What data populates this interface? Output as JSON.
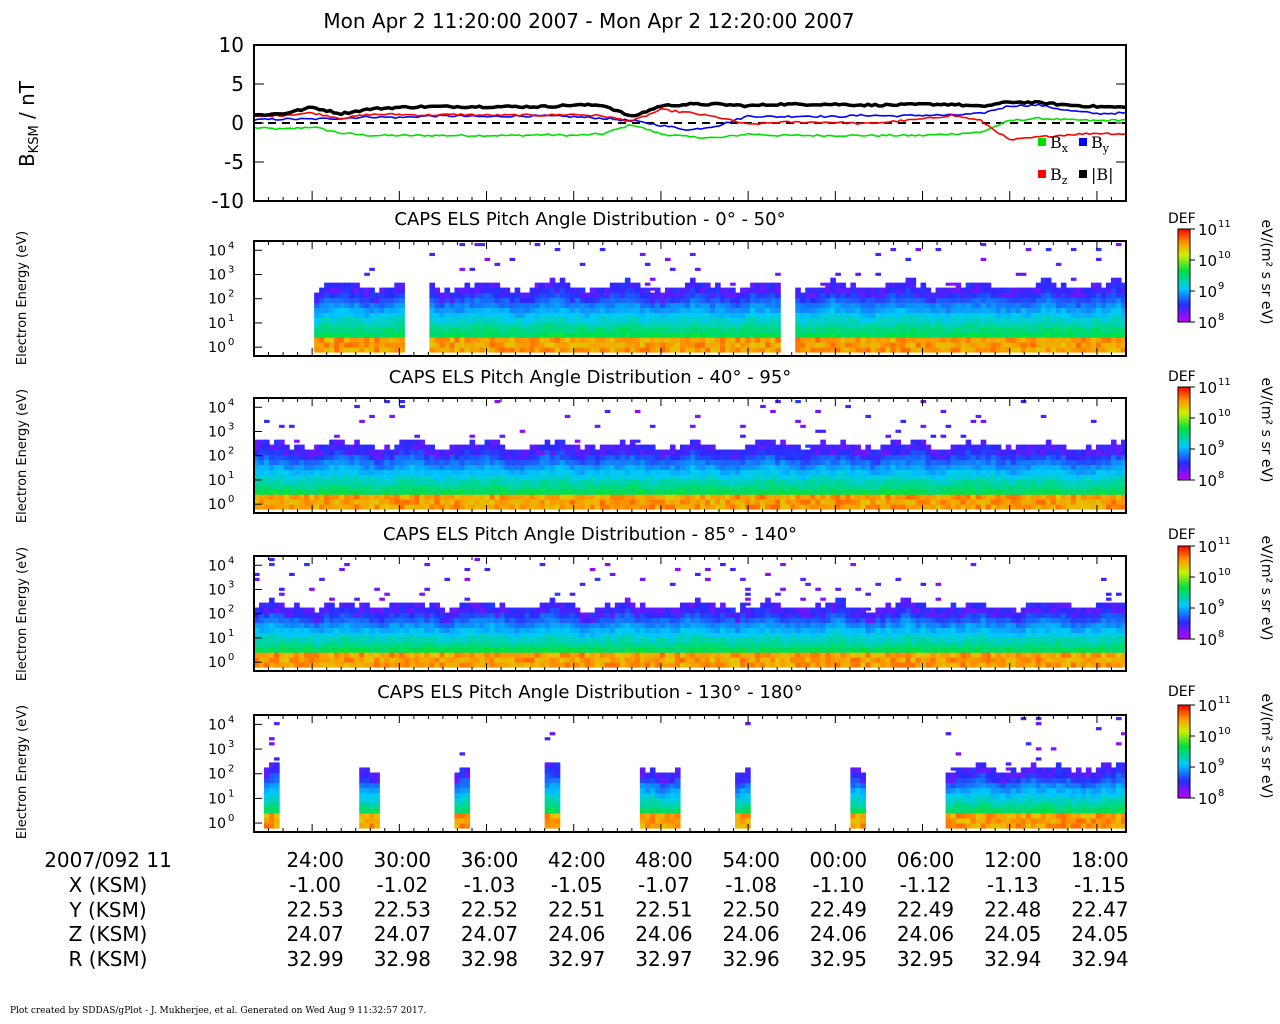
{
  "title": "Mon Apr 2 11:20:00 2007 - Mon Apr 2 12:20:00 2007",
  "footer": "Plot created by SDDAS/gPlot - J. Mukherjee, et al.  Generated on Wed Aug 9 11:32:57 2017.",
  "colors": {
    "bx": "#00e000",
    "by": "#0000ff",
    "bz": "#ff0000",
    "bmag": "#000000"
  },
  "chart_data": [
    {
      "type": "line",
      "ylabel": "B_KSM / nT",
      "ylabel_main": "B",
      "ylabel_sub": "KSM",
      "ylabel_unit": " / nT",
      "ylim": [
        -10,
        10
      ],
      "yticks": [
        "10",
        "5",
        "0",
        "-5",
        "-10"
      ],
      "ytick_values": [
        10,
        5,
        0,
        -5,
        -10
      ],
      "zero_line": "dashed",
      "legend_position": "bottom-right",
      "x_minutes": [
        0,
        2,
        4,
        6,
        8,
        10,
        12,
        14,
        16,
        18,
        20,
        22,
        24,
        26,
        28,
        30,
        32,
        34,
        36,
        38,
        40,
        42,
        44,
        46,
        48,
        50,
        52,
        54,
        56,
        58,
        60
      ],
      "series": [
        {
          "name": "Bx",
          "label_main": "B",
          "label_sub": "x",
          "color_key": "bx",
          "values": [
            -0.6,
            -0.8,
            -0.5,
            -1.3,
            -1.6,
            -1.6,
            -1.6,
            -1.6,
            -1.6,
            -1.6,
            -1.5,
            -1.6,
            -1.4,
            -0.2,
            -1.4,
            -1.8,
            -1.9,
            -1.4,
            -1.6,
            -1.6,
            -1.6,
            -1.6,
            -1.6,
            -1.6,
            -1.4,
            -1.2,
            0.3,
            0.6,
            0.4,
            0.3,
            0.4
          ]
        },
        {
          "name": "By",
          "label_main": "B",
          "label_sub": "y",
          "color_key": "by",
          "values": [
            0.4,
            0.5,
            0.5,
            0.6,
            0.8,
            0.7,
            0.9,
            0.9,
            0.8,
            0.9,
            0.9,
            0.8,
            0.6,
            0.3,
            -0.3,
            -0.9,
            -0.3,
            0.9,
            0.8,
            0.9,
            0.8,
            1.0,
            0.9,
            1.0,
            1.0,
            1.2,
            2.2,
            2.3,
            1.6,
            1.2,
            1.3
          ]
        },
        {
          "name": "Bz",
          "label_main": "B",
          "label_sub": "z",
          "color_key": "bz",
          "values": [
            0.8,
            1.0,
            1.3,
            0.6,
            1.1,
            1.1,
            1.0,
            1.1,
            1.0,
            1.0,
            1.0,
            1.1,
            0.9,
            0.2,
            1.7,
            1.3,
            0.7,
            -0.2,
            0.1,
            0.1,
            0.1,
            -0.1,
            0.2,
            0.5,
            1.0,
            0.3,
            -2.2,
            -1.8,
            -1.5,
            -1.3,
            -1.4
          ]
        },
        {
          "name": "|B|",
          "label_main": "|B|",
          "label_sub": "",
          "color_key": "bmag",
          "values": [
            1.0,
            1.2,
            2.0,
            1.2,
            1.8,
            2.0,
            2.1,
            2.1,
            2.1,
            2.1,
            2.1,
            2.3,
            2.3,
            0.8,
            2.2,
            2.4,
            2.4,
            2.2,
            2.4,
            2.4,
            2.4,
            2.3,
            2.3,
            2.4,
            2.4,
            2.1,
            2.7,
            2.6,
            2.3,
            2.1,
            2.0
          ]
        }
      ]
    },
    {
      "type": "heatmap",
      "title": "CAPS ELS Pitch Angle Distribution - 0° - 50°",
      "ylabel": "Electron Energy (eV)",
      "y_scale": "log",
      "ytick_exponents": [
        0,
        1,
        2,
        3,
        4
      ],
      "colorbar": {
        "label": "DEF",
        "unit": "eV/(m² s sr eV)",
        "ticks_exponents": [
          11,
          10,
          9,
          8
        ]
      },
      "bursts_minutes": [
        [
          4,
          10
        ],
        [
          12,
          18
        ],
        [
          18,
          24
        ],
        [
          24,
          30
        ],
        [
          30,
          36
        ]
      ],
      "continuous_from_minutes": 37,
      "max_flux_energy_exponent": 2.4
    },
    {
      "type": "heatmap",
      "title": "CAPS ELS Pitch Angle Distribution - 40° - 95°",
      "ylabel": "Electron Energy (eV)",
      "y_scale": "log",
      "ytick_exponents": [
        0,
        1,
        2,
        3,
        4
      ],
      "colorbar": {
        "label": "DEF",
        "unit": "eV/(m² s sr eV)",
        "ticks_exponents": [
          11,
          10,
          9,
          8
        ]
      },
      "continuous_from_minutes": 0,
      "max_flux_energy_exponent": 2.3
    },
    {
      "type": "heatmap",
      "title": "CAPS ELS Pitch Angle Distribution - 85° - 140°",
      "ylabel": "Electron Energy (eV)",
      "y_scale": "log",
      "ytick_exponents": [
        0,
        1,
        2,
        3,
        4
      ],
      "colorbar": {
        "label": "DEF",
        "unit": "eV/(m² s sr eV)",
        "ticks_exponents": [
          11,
          10,
          9,
          8
        ]
      },
      "continuous_from_minutes": 0,
      "max_flux_energy_exponent": 2.2
    },
    {
      "type": "heatmap",
      "title": "CAPS ELS Pitch Angle Distribution - 130° - 180°",
      "ylabel": "Electron Energy (eV)",
      "y_scale": "log",
      "ytick_exponents": [
        0,
        1,
        2,
        3,
        4
      ],
      "colorbar": {
        "label": "DEF",
        "unit": "eV/(m² s sr eV)",
        "ticks_exponents": [
          11,
          10,
          9,
          8
        ]
      },
      "bursts_minutes": [
        [
          0.5,
          1.5
        ],
        [
          7.0,
          8.3
        ],
        [
          13.7,
          14.7
        ],
        [
          20.0,
          21.0
        ],
        [
          26.3,
          29.0
        ],
        [
          33.0,
          34.0
        ],
        [
          41.0,
          42.0
        ]
      ],
      "continuous_from_minutes": 47.3,
      "max_flux_energy_exponent": 2.1
    }
  ],
  "xaxis": {
    "date_label": "2007/092 11",
    "tick_minutes": [
      4,
      10,
      16,
      22,
      28,
      34,
      40,
      46,
      52,
      58
    ],
    "tick_labels": [
      "24:00",
      "30:00",
      "36:00",
      "42:00",
      "48:00",
      "54:00",
      "00:00",
      "06:00",
      "12:00",
      "18:00"
    ],
    "rows": [
      {
        "label": "X (KSM)",
        "values": [
          "-1.00",
          "-1.02",
          "-1.03",
          "-1.05",
          "-1.07",
          "-1.08",
          "-1.10",
          "-1.12",
          "-1.13",
          "-1.15"
        ]
      },
      {
        "label": "Y (KSM)",
        "values": [
          "22.53",
          "22.53",
          "22.52",
          "22.51",
          "22.51",
          "22.50",
          "22.49",
          "22.49",
          "22.48",
          "22.47"
        ]
      },
      {
        "label": "Z (KSM)",
        "values": [
          "24.07",
          "24.07",
          "24.07",
          "24.06",
          "24.06",
          "24.06",
          "24.06",
          "24.06",
          "24.05",
          "24.05"
        ]
      },
      {
        "label": "R (KSM)",
        "values": [
          "32.99",
          "32.98",
          "32.98",
          "32.97",
          "32.97",
          "32.96",
          "32.95",
          "32.95",
          "32.94",
          "32.94"
        ]
      }
    ]
  }
}
